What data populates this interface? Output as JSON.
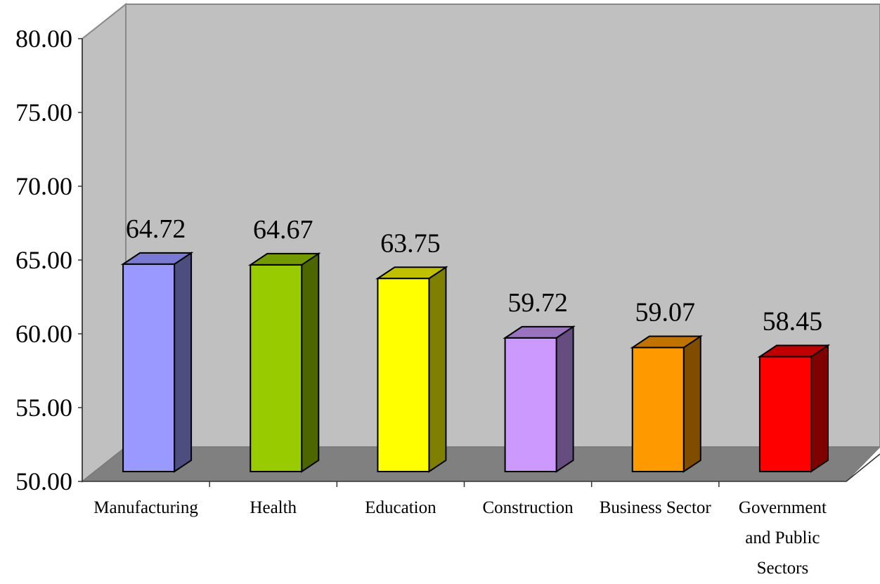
{
  "chart_data": {
    "type": "bar",
    "title": "",
    "xlabel": "",
    "ylabel": "",
    "ylim": [
      50,
      80
    ],
    "yticks": [
      "50.00",
      "55.00",
      "60.00",
      "65.00",
      "70.00",
      "75.00",
      "80.00"
    ],
    "categories": [
      [
        "Manufacturing"
      ],
      [
        "Health"
      ],
      [
        "Education"
      ],
      [
        "Construction"
      ],
      [
        "Business Sector"
      ],
      [
        "Government",
        "and Public",
        "Sectors"
      ]
    ],
    "values": [
      64.72,
      64.67,
      63.75,
      59.72,
      59.07,
      58.45
    ],
    "value_labels": [
      "64.72",
      "64.67",
      "63.75",
      "59.72",
      "59.07",
      "58.45"
    ],
    "colors": [
      {
        "front": "#9999ff",
        "top": "#7a7ad0",
        "side": "#4d4d80"
      },
      {
        "front": "#99cc00",
        "top": "#739900",
        "side": "#4d6600"
      },
      {
        "front": "#ffff00",
        "top": "#c0c000",
        "side": "#808000"
      },
      {
        "front": "#cc99ff",
        "top": "#9a73c0",
        "side": "#664d80"
      },
      {
        "front": "#ff9900",
        "top": "#c07300",
        "side": "#804d00"
      },
      {
        "front": "#ff0000",
        "top": "#c00000",
        "side": "#800000"
      }
    ],
    "wall_color": "#c0c0c0",
    "floor_color": "#808080",
    "grid": false,
    "legend": "none"
  }
}
